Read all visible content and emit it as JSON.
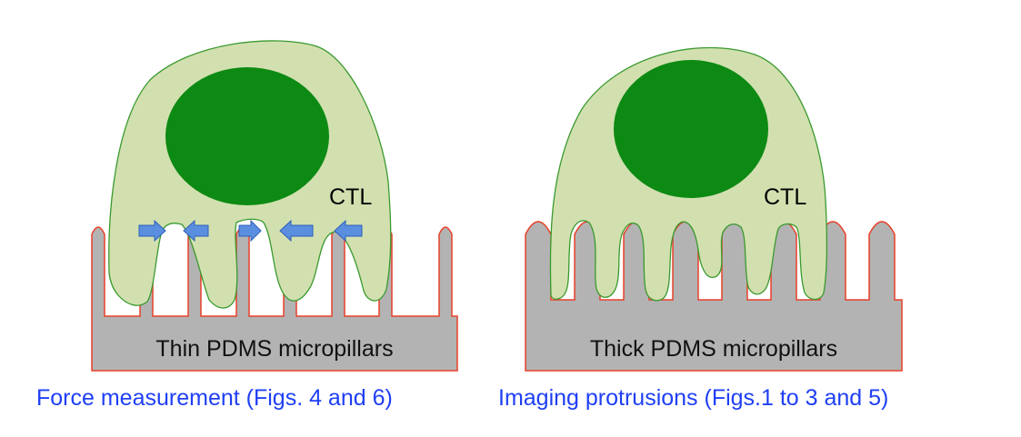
{
  "left_panel": {
    "cell_label": "CTL",
    "substrate_label": "Thin PDMS micropillars",
    "caption": "Force measurement (Figs. 4 and 6)"
  },
  "right_panel": {
    "cell_label": "CTL",
    "substrate_label": "Thick PDMS micropillars",
    "caption": "Imaging protrusions (Figs.1 to 3 and 5)"
  },
  "colors": {
    "cell_body": "#d2e0b0",
    "cell_outline": "#3a9a2e",
    "nucleus": "#0d8a13",
    "pillar": "#b3b3b3",
    "pillar_outline": "#e8402a",
    "force_arrow": "#5a8fe0",
    "caption_text": "#1f3ff5"
  },
  "icons": {
    "force_arrow": "arrow-icon"
  }
}
